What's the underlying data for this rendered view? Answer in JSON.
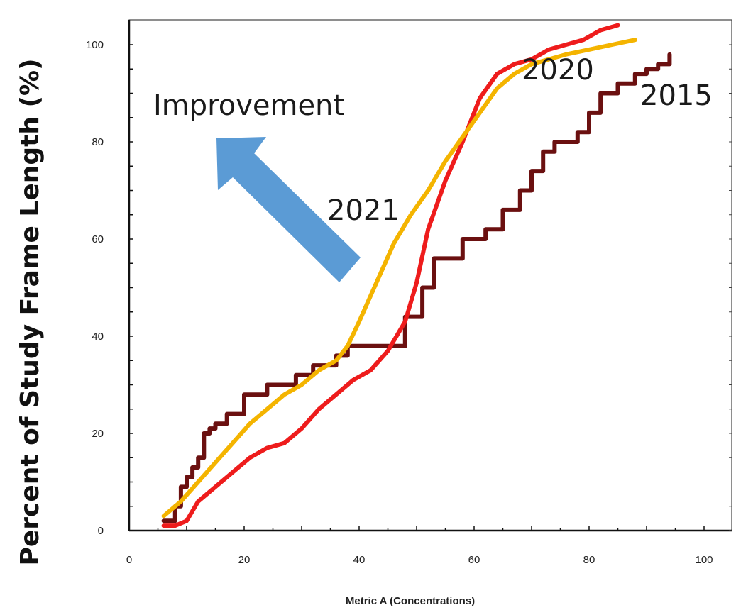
{
  "chart_data": {
    "type": "line",
    "title": "",
    "xlabel": "Metric A (Concentrations)",
    "ylabel": "Percent of Study Frame Length (%)",
    "xlim": [
      0,
      105
    ],
    "ylim": [
      0,
      105
    ],
    "xticks": [
      0,
      20,
      40,
      60,
      80,
      100
    ],
    "yticks": [
      0,
      20,
      40,
      60,
      80,
      100
    ],
    "grid": false,
    "legend": "none",
    "series": [
      {
        "name": "2015",
        "color": "#6b1010",
        "step": true,
        "x": [
          6,
          8,
          9,
          10,
          11,
          12,
          13,
          14,
          15,
          17,
          20,
          24,
          29,
          32,
          36,
          38,
          45,
          48,
          51,
          53,
          58,
          62,
          65,
          68,
          70,
          72,
          74,
          78,
          80,
          82,
          85,
          88,
          90,
          92,
          94
        ],
        "y": [
          2,
          5,
          9,
          11,
          13,
          15,
          20,
          21,
          22,
          24,
          28,
          30,
          32,
          34,
          36,
          38,
          38,
          44,
          50,
          56,
          60,
          62,
          66,
          70,
          74,
          78,
          80,
          82,
          86,
          90,
          92,
          94,
          95,
          96,
          98
        ]
      },
      {
        "name": "2020",
        "color": "#ee1c1c",
        "step": false,
        "x": [
          6,
          8,
          10,
          12,
          15,
          18,
          21,
          24,
          27,
          30,
          33,
          36,
          39,
          42,
          45,
          48,
          50,
          52,
          55,
          58,
          61,
          64,
          67,
          70,
          73,
          76,
          79,
          82,
          85
        ],
        "y": [
          1,
          1,
          2,
          6,
          9,
          12,
          15,
          17,
          18,
          21,
          25,
          28,
          31,
          33,
          37,
          43,
          51,
          62,
          72,
          80,
          89,
          94,
          96,
          97,
          99,
          100,
          101,
          103,
          104
        ]
      },
      {
        "name": "2021",
        "color": "#f4b400",
        "step": false,
        "x": [
          6,
          9,
          12,
          15,
          18,
          21,
          24,
          27,
          30,
          33,
          36,
          38,
          40,
          43,
          46,
          49,
          52,
          55,
          58,
          61,
          64,
          67,
          70,
          73,
          76,
          80,
          84,
          88
        ],
        "y": [
          3,
          6,
          10,
          14,
          18,
          22,
          25,
          28,
          30,
          33,
          35,
          38,
          43,
          51,
          59,
          65,
          70,
          76,
          81,
          86,
          91,
          94,
          96,
          97,
          98,
          99,
          100,
          101
        ]
      }
    ],
    "annotations": [
      {
        "text": "Improvement"
      },
      {
        "text": "2021"
      },
      {
        "text": "2020"
      },
      {
        "text": "2015"
      }
    ],
    "arrow_color": "#5b9bd5"
  }
}
